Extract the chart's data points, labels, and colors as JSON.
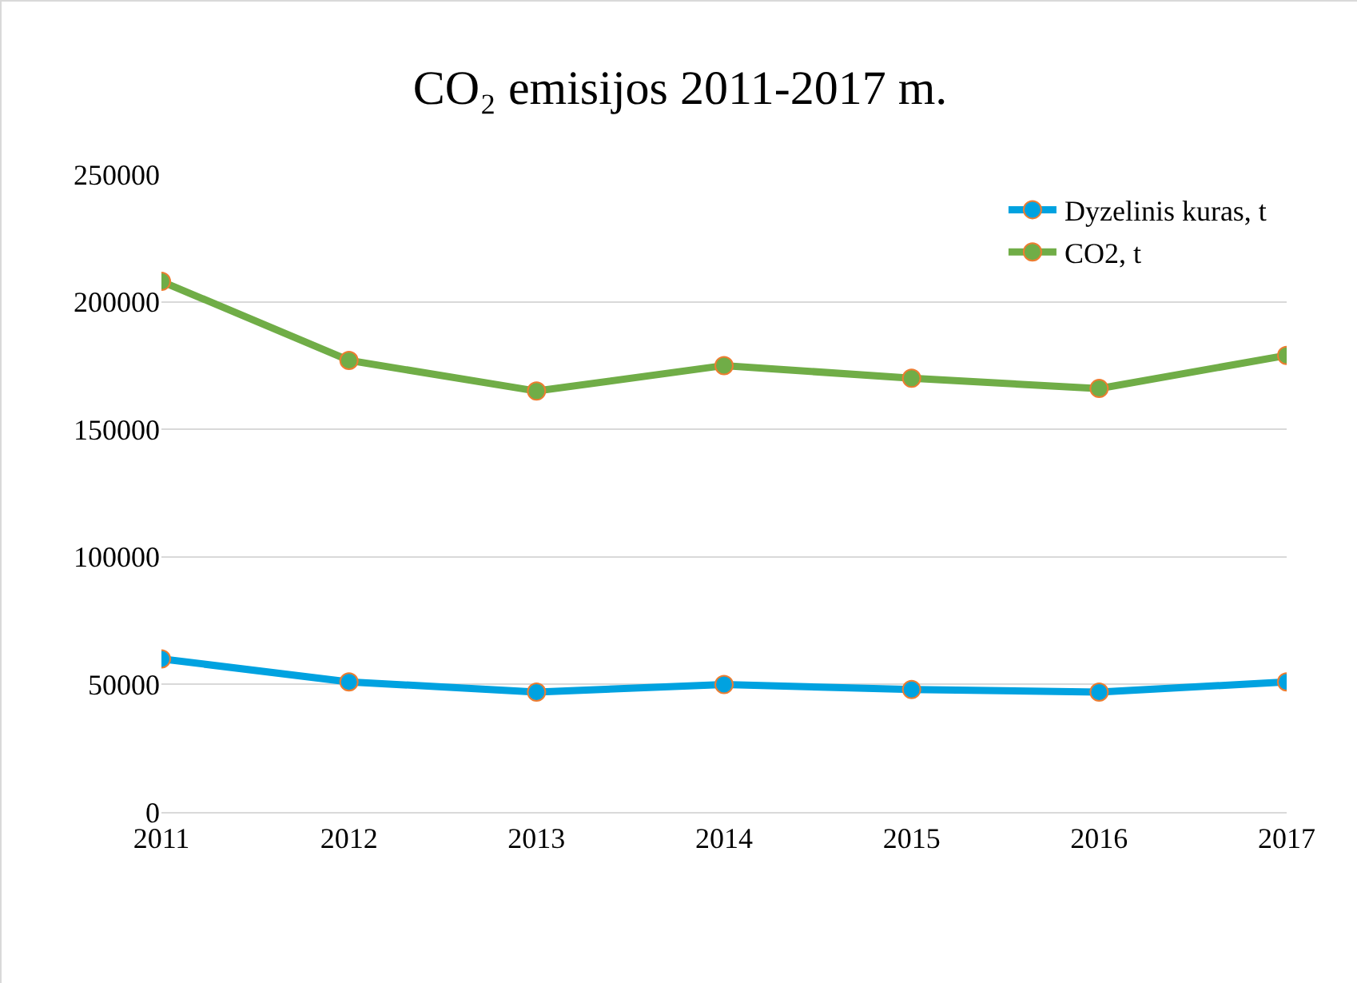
{
  "chart_data": {
    "type": "line",
    "title": "CO₂ emisijos 2011-2017 m.",
    "categories": [
      "2011",
      "2012",
      "2013",
      "2014",
      "2015",
      "2016",
      "2017"
    ],
    "series": [
      {
        "name": "Dyzelinis kuras, t",
        "color": "#00a2e0",
        "values": [
          60000,
          51000,
          47000,
          50000,
          48000,
          47000,
          51000
        ]
      },
      {
        "name": "CO2, t",
        "color": "#70ad47",
        "values": [
          208000,
          177000,
          165000,
          175000,
          170000,
          166000,
          179000
        ]
      }
    ],
    "ylim": [
      0,
      250000
    ],
    "yticks": [
      0,
      50000,
      100000,
      150000,
      200000,
      250000
    ],
    "grid": "y",
    "legend": "top right",
    "marker": "circle",
    "line_style": "solid"
  }
}
